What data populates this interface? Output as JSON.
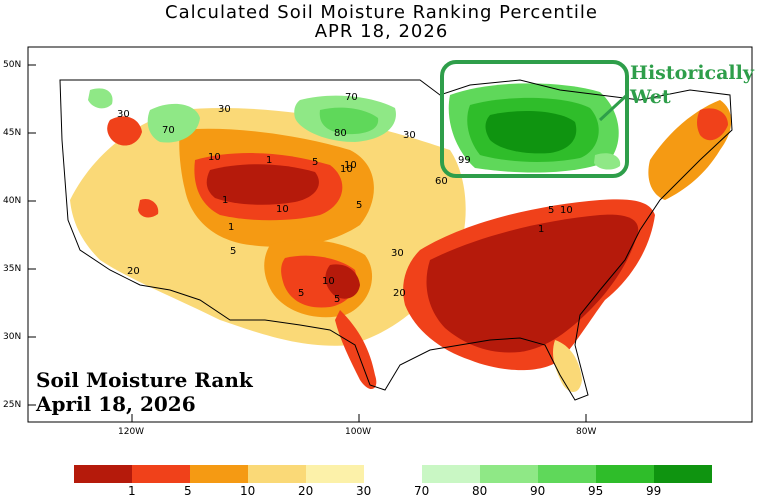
{
  "title": {
    "line1": "Calculated Soil Moisture Ranking Percentile",
    "line2": "APR 18, 2026"
  },
  "latitude_labels": [
    "50N",
    "45N",
    "40N",
    "35N",
    "30N",
    "25N"
  ],
  "longitude_labels": [
    "120W",
    "100W",
    "80W"
  ],
  "inset_label": {
    "line1": "Soil Moisture Rank",
    "line2": "April 18, 2026"
  },
  "callout": {
    "line1": "Historically",
    "line2": "Wet",
    "color": "#2e9e4a"
  },
  "contour_labels": [
    "30",
    "70",
    "30",
    "10",
    "1",
    "5",
    "10",
    "1",
    "10",
    "5",
    "1",
    "5",
    "10",
    "5",
    "10",
    "5",
    "70",
    "80",
    "30",
    "99",
    "60",
    "20",
    "30",
    "5",
    "10",
    "1",
    "20"
  ],
  "legend": {
    "dry": [
      {
        "label": "1",
        "color": "#b51a0b"
      },
      {
        "label": "5",
        "color": "#f0411a"
      },
      {
        "label": "10",
        "color": "#f59a13"
      },
      {
        "label": "20",
        "color": "#fad977"
      },
      {
        "label": "30",
        "color": "#fcf1a9"
      }
    ],
    "wet": [
      {
        "label": "70",
        "color": "#c9f7c4"
      },
      {
        "label": "80",
        "color": "#8fe886"
      },
      {
        "label": "90",
        "color": "#5fd85a"
      },
      {
        "label": "95",
        "color": "#2fbd2a"
      },
      {
        "label": "99",
        "color": "#0f9410"
      }
    ]
  }
}
